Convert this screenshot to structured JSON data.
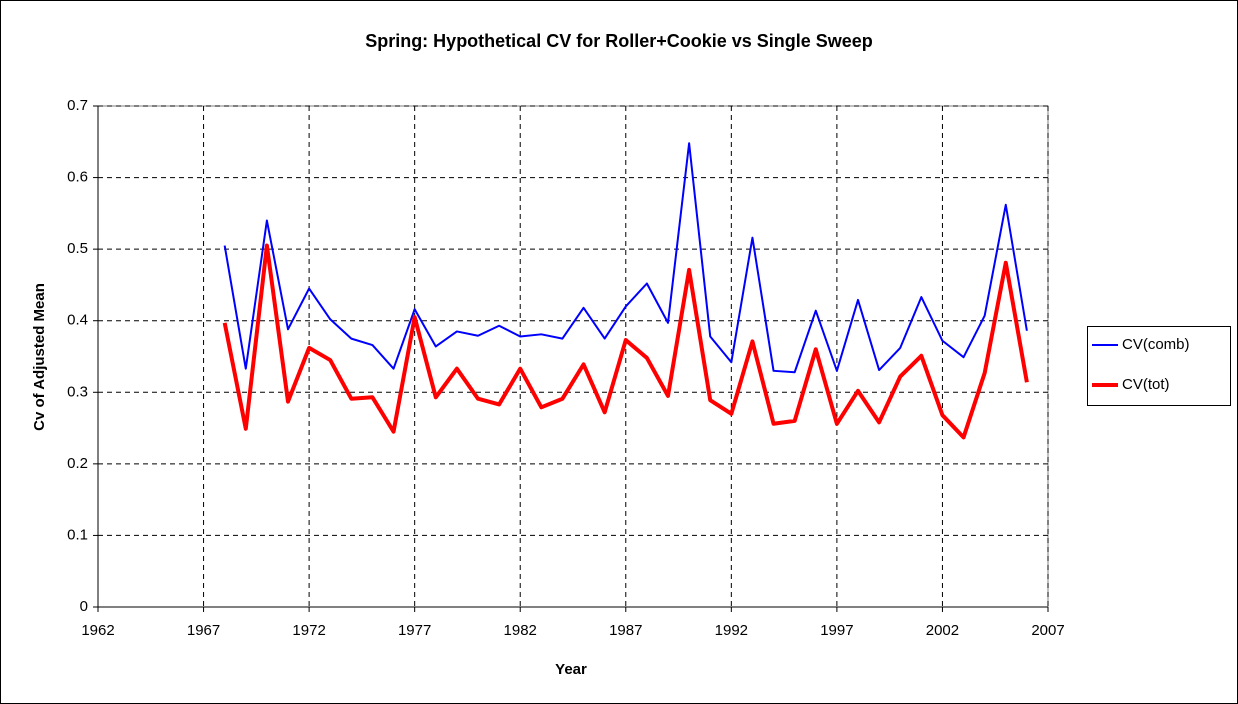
{
  "chart_data": {
    "type": "line",
    "title": "Spring: Hypothetical CV for Roller+Cookie vs Single Sweep",
    "xlabel": "Year",
    "ylabel": "Cv of Adjusted Mean",
    "x": [
      1968,
      1969,
      1970,
      1971,
      1972,
      1973,
      1974,
      1975,
      1976,
      1977,
      1978,
      1979,
      1980,
      1981,
      1982,
      1983,
      1984,
      1985,
      1986,
      1987,
      1988,
      1989,
      1990,
      1991,
      1992,
      1993,
      1994,
      1995,
      1996,
      1997,
      1998,
      1999,
      2000,
      2001,
      2002,
      2003,
      2004,
      2005,
      2006
    ],
    "series": [
      {
        "name": "CV(comb)",
        "color": "#0000ff",
        "width": 2,
        "values": [
          0.505,
          0.333,
          0.54,
          0.388,
          0.445,
          0.402,
          0.375,
          0.366,
          0.333,
          0.416,
          0.364,
          0.385,
          0.379,
          0.393,
          0.378,
          0.381,
          0.375,
          0.418,
          0.375,
          0.42,
          0.452,
          0.397,
          0.648,
          0.378,
          0.342,
          0.516,
          0.33,
          0.328,
          0.414,
          0.33,
          0.429,
          0.331,
          0.362,
          0.433,
          0.372,
          0.349,
          0.407,
          0.562,
          0.386
        ]
      },
      {
        "name": "CV(tot)",
        "color": "#ff0000",
        "width": 4,
        "values": [
          0.397,
          0.249,
          0.505,
          0.287,
          0.362,
          0.345,
          0.291,
          0.293,
          0.245,
          0.405,
          0.293,
          0.333,
          0.291,
          0.283,
          0.333,
          0.279,
          0.291,
          0.339,
          0.272,
          0.373,
          0.348,
          0.295,
          0.471,
          0.289,
          0.27,
          0.371,
          0.256,
          0.26,
          0.36,
          0.256,
          0.302,
          0.258,
          0.322,
          0.351,
          0.268,
          0.237,
          0.327,
          0.481,
          0.314
        ]
      }
    ],
    "xlim": [
      1962,
      2007
    ],
    "xticks": [
      1962,
      1967,
      1972,
      1977,
      1982,
      1987,
      1992,
      1997,
      2002,
      2007
    ],
    "ylim": [
      0,
      0.7
    ],
    "yticks": [
      0,
      0.1,
      0.2,
      0.3,
      0.4,
      0.5,
      0.6,
      0.7
    ],
    "grid": true,
    "legend": "right"
  }
}
